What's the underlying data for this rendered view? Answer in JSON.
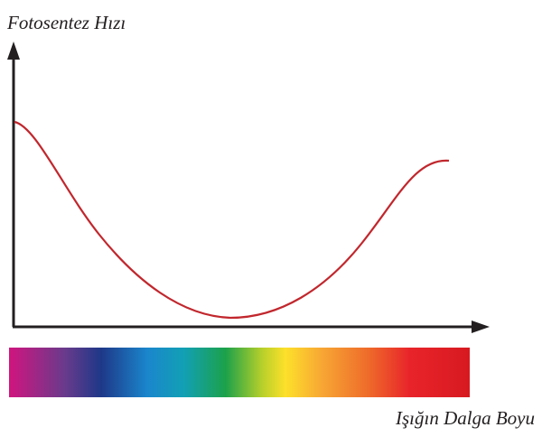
{
  "y_axis_label": "Fotosentez Hızı",
  "x_axis_label": "Işığın Dalga Boyu"
}
